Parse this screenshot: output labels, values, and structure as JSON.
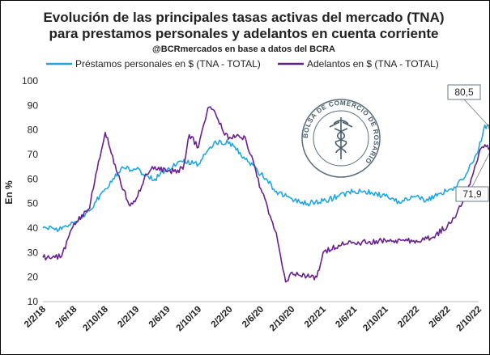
{
  "chart_data": {
    "type": "line",
    "title": "Evolución de las principales tasas activas del mercado (TNA)",
    "title_line2": "para prestamos personales y adelantos en cuenta corriente",
    "subtitle": "@BCRmercados en base a datos del BCRA",
    "ylabel": "En %",
    "ylim": [
      10,
      100
    ],
    "yticks": [
      "10",
      "20",
      "30",
      "40",
      "50",
      "60",
      "70",
      "80",
      "90",
      "100"
    ],
    "xticks": [
      "2/2/18",
      "2/6/18",
      "2/10/18",
      "2/2/19",
      "2/6/19",
      "2/10/19",
      "2/2/20",
      "2/6/20",
      "2/10/20",
      "2/2/21",
      "2/6/21",
      "2/10/21",
      "2/2/22",
      "2/6/22",
      "2/10/22"
    ],
    "grid": false,
    "legend_position": "top",
    "logo_text": "BOLSA DE COMERCIO DE ROSARIO",
    "series": [
      {
        "name": "Préstamos personales en $ (TNA - TOTAL)",
        "color": "#1ea7e1",
        "end_label": "80,5",
        "x": [
          0,
          0.3,
          0.6,
          1,
          1.5,
          2,
          2.5,
          3,
          3.3,
          3.6,
          4,
          4.5,
          5,
          5.5,
          6,
          6.5,
          7,
          7.5,
          8,
          8.5,
          9,
          9.5,
          10,
          10.3,
          10.6,
          11,
          11.3,
          11.6,
          12,
          12.3,
          12.7,
          13,
          13.3,
          13.6,
          14,
          14.2,
          14.4
        ],
        "y": [
          40,
          40,
          39.5,
          42,
          47,
          56,
          64,
          64,
          62,
          60,
          64,
          67,
          66,
          75,
          75,
          68,
          62,
          55,
          52,
          50,
          51,
          53,
          55,
          55,
          54,
          53,
          51,
          51,
          53,
          51,
          54,
          55,
          57,
          62,
          72,
          82,
          80.5
        ]
      },
      {
        "name": "Adelantos en $ (TNA - TOTAL)",
        "color": "#6a1f8f",
        "end_label": "71,9",
        "x": [
          0,
          0.3,
          0.6,
          1,
          1.5,
          1.7,
          2,
          2.4,
          2.8,
          3,
          3.3,
          3.6,
          4,
          4.5,
          4.7,
          5,
          5.3,
          5.5,
          5.8,
          6,
          6.5,
          7,
          7.3,
          7.5,
          7.8,
          8,
          8.2,
          8.4,
          8.6,
          8.8,
          9,
          9.5,
          10,
          10.5,
          11,
          11.5,
          12,
          12.5,
          13,
          13.3,
          13.6,
          14,
          14.2,
          14.4
        ],
        "y": [
          28,
          28,
          28.5,
          42,
          48,
          62,
          79,
          62,
          49,
          52,
          62,
          65,
          63,
          64,
          78,
          73,
          89,
          88,
          79,
          77,
          77,
          56,
          45,
          38,
          18,
          22,
          21,
          21,
          20,
          20,
          30,
          33,
          34,
          34.5,
          35,
          35,
          35,
          36,
          41,
          46,
          54,
          70,
          74,
          71.9
        ]
      }
    ]
  }
}
